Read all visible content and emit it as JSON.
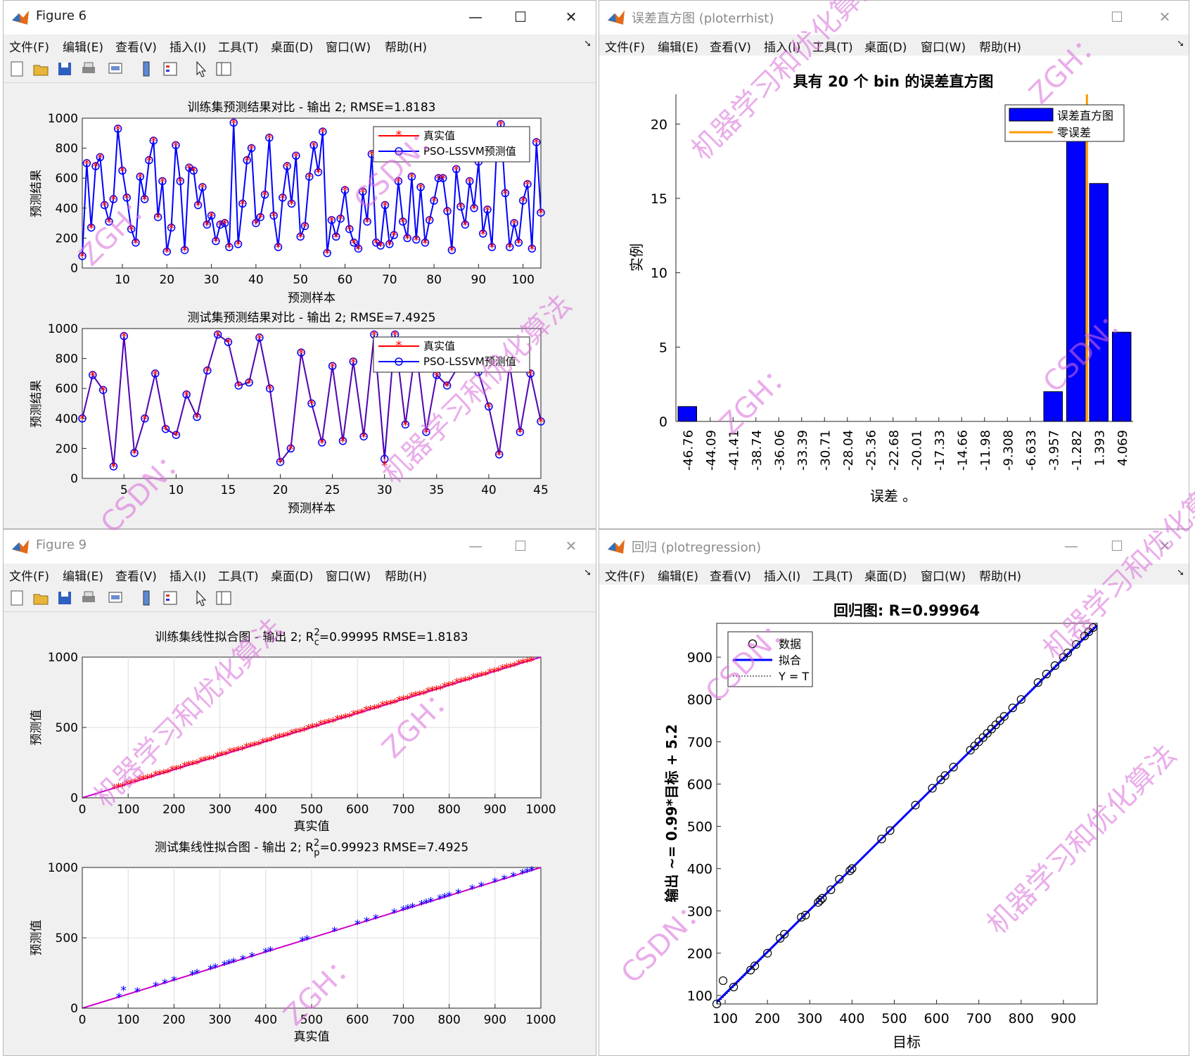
{
  "windows": {
    "fig6": {
      "title": "Figure 6",
      "menus": [
        "文件(F)",
        "编辑(E)",
        "查看(V)",
        "插入(I)",
        "工具(T)",
        "桌面(D)",
        "窗口(W)",
        "帮助(H)"
      ],
      "plot1": {
        "title": "训练集预测结果对比 - 输出 2; RMSE=1.8183",
        "xlabel": "预测样本",
        "ylabel": "预测结果",
        "xticks": [
          "10",
          "20",
          "30",
          "40",
          "50",
          "60",
          "70",
          "80",
          "90",
          "100"
        ],
        "yticks": [
          "0",
          "200",
          "400",
          "600",
          "800",
          "1000"
        ],
        "legend": [
          "真实值",
          "PSO-LSSVM预测值"
        ]
      },
      "plot2": {
        "title": "测试集预测结果对比 - 输出 2; RMSE=7.4925",
        "xlabel": "预测样本",
        "ylabel": "预测结果",
        "xticks": [
          "5",
          "10",
          "15",
          "20",
          "25",
          "30",
          "35",
          "40",
          "45"
        ],
        "yticks": [
          "0",
          "200",
          "400",
          "600",
          "800",
          "1000"
        ],
        "legend": [
          "真实值",
          "PSO-LSSVM预测值"
        ]
      }
    },
    "errhist": {
      "title": "误差直方图 (ploterrhist)",
      "menus": [
        "文件(F)",
        "编辑(E)",
        "查看(V)",
        "插入(I)",
        "工具(T)",
        "桌面(D)",
        "窗口(W)",
        "帮助(H)"
      ],
      "plot_title": "具有 20 个 bin 的误差直方图",
      "xlabel": "误差 。",
      "ylabel": "实例",
      "legend": [
        "误差直方图",
        "零误差"
      ]
    },
    "fig9": {
      "title": "Figure 9",
      "menus": [
        "文件(F)",
        "编辑(E)",
        "查看(V)",
        "插入(I)",
        "工具(T)",
        "桌面(D)",
        "窗口(W)",
        "帮助(H)"
      ],
      "plot1": {
        "title_pre": "训练集线性拟合图 - 输出 2; R",
        "title_sup": "2",
        "title_sub": "c",
        "title_post": "=0.99995  RMSE=1.8183",
        "xlabel": "真实值",
        "ylabel": "预测值",
        "xticks": [
          "0",
          "100",
          "200",
          "300",
          "400",
          "500",
          "600",
          "700",
          "800",
          "900",
          "1000"
        ],
        "yticks": [
          "0",
          "500",
          "1000"
        ]
      },
      "plot2": {
        "title_pre": "测试集线性拟合图 - 输出 2; R",
        "title_sup": "2",
        "title_sub": "p",
        "title_post": "=0.99923  RMSE=7.4925",
        "xlabel": "真实值",
        "ylabel": "预测值",
        "xticks": [
          "0",
          "100",
          "200",
          "300",
          "400",
          "500",
          "600",
          "700",
          "800",
          "900",
          "1000"
        ],
        "yticks": [
          "0",
          "500",
          "1000"
        ]
      }
    },
    "regression": {
      "title": "回归 (plotregression)",
      "menus": [
        "文件(F)",
        "编辑(E)",
        "查看(V)",
        "插入(I)",
        "工具(T)",
        "桌面(D)",
        "窗口(W)",
        "帮助(H)"
      ],
      "plot_title": "回归图: R=0.99964",
      "xlabel": "目标",
      "ylabel": "输出 ~= 0.99*目标 + 5.2",
      "xticks": [
        "100",
        "200",
        "300",
        "400",
        "500",
        "600",
        "700",
        "800",
        "900"
      ],
      "yticks": [
        "100",
        "200",
        "300",
        "400",
        "500",
        "600",
        "700",
        "800",
        "900"
      ],
      "legend": [
        "数据",
        "拟合",
        "Y = T"
      ]
    }
  },
  "watermark": [
    "ZGH：",
    "CSDN：",
    "机器学习和优化算法"
  ],
  "chart_data": [
    {
      "type": "line",
      "title": "训练集预测结果对比 - 输出 2; RMSE=1.8183",
      "xlabel": "预测样本",
      "ylabel": "预测结果",
      "xlim": [
        1,
        104
      ],
      "ylim": [
        0,
        1000
      ],
      "grid": false,
      "legend_position": "top-right",
      "series": [
        {
          "name": "真实值",
          "color": "#ff0000",
          "marker": "*"
        },
        {
          "name": "PSO-LSSVM预测值",
          "color": "#0000ff",
          "marker": "o"
        }
      ],
      "values": [
        80,
        700,
        270,
        680,
        740,
        420,
        310,
        460,
        930,
        650,
        470,
        260,
        170,
        610,
        460,
        720,
        850,
        340,
        580,
        110,
        270,
        820,
        580,
        120,
        670,
        650,
        420,
        540,
        290,
        350,
        180,
        290,
        300,
        140,
        970,
        160,
        430,
        720,
        800,
        300,
        340,
        490,
        870,
        350,
        140,
        470,
        680,
        430,
        750,
        210,
        280,
        610,
        820,
        640,
        910,
        100,
        320,
        210,
        330,
        520,
        260,
        170,
        130,
        510,
        310,
        760,
        170,
        150,
        420,
        160,
        220,
        580,
        310,
        200,
        610,
        190,
        540,
        170,
        320,
        450,
        600,
        600,
        380,
        120,
        660,
        410,
        290,
        580,
        400,
        710,
        230,
        390,
        140,
        750,
        960,
        500,
        140,
        300,
        170,
        450,
        560,
        130,
        840,
        370
      ]
    },
    {
      "type": "line",
      "title": "测试集预测结果对比 - 输出 2; RMSE=7.4925",
      "xlabel": "预测样本",
      "ylabel": "预测结果",
      "xlim": [
        1,
        45
      ],
      "ylim": [
        0,
        1000
      ],
      "grid": false,
      "legend_position": "top-right",
      "series": [
        {
          "name": "真实值",
          "color": "#ff0000",
          "marker": "*",
          "values": [
            400,
            690,
            590,
            80,
            950,
            170,
            400,
            700,
            330,
            290,
            560,
            410,
            720,
            960,
            910,
            620,
            640,
            940,
            600,
            110,
            200,
            840,
            500,
            240,
            750,
            250,
            780,
            280,
            960,
            90,
            960,
            360,
            880,
            310,
            690,
            620,
            740,
            800,
            710,
            480,
            160,
            760,
            310,
            700,
            380
          ]
        },
        {
          "name": "PSO-LSSVM预测值",
          "color": "#0000ff",
          "marker": "o",
          "values": [
            400,
            690,
            590,
            80,
            950,
            170,
            400,
            700,
            330,
            290,
            560,
            410,
            720,
            960,
            910,
            620,
            640,
            940,
            600,
            110,
            200,
            840,
            500,
            240,
            750,
            250,
            780,
            280,
            960,
            130,
            960,
            360,
            880,
            310,
            690,
            620,
            740,
            800,
            710,
            480,
            160,
            760,
            310,
            700,
            380
          ]
        }
      ]
    },
    {
      "type": "bar",
      "title": "具有 20 个 bin 的误差直方图",
      "xlabel": "误差 。",
      "ylabel": "实例",
      "categories": [
        "-46.76",
        "-44.09",
        "-41.41",
        "-38.74",
        "-36.06",
        "-33.39",
        "-30.71",
        "-28.04",
        "-25.36",
        "-22.68",
        "-20.01",
        "-17.33",
        "-14.66",
        "-11.98",
        "-9.308",
        "-6.633",
        "-3.957",
        "-1.282",
        "1.393",
        "4.069"
      ],
      "values": [
        1,
        0,
        0,
        0,
        0,
        0,
        0,
        0,
        0,
        0,
        0,
        0,
        0,
        0,
        0,
        0,
        2,
        21,
        16,
        6
      ],
      "ylim": [
        0,
        22
      ],
      "yticks": [
        0,
        5,
        10,
        15,
        20
      ],
      "zero_error_line": 0,
      "legend_position": "top-right",
      "series": [
        {
          "name": "误差直方图",
          "color": "#0000ff"
        },
        {
          "name": "零误差",
          "color": "#ff9900"
        }
      ]
    },
    {
      "type": "scatter",
      "title": "训练集线性拟合图 - 输出 2; R²c=0.99995  RMSE=1.8183",
      "xlabel": "真实值",
      "ylabel": "预测值",
      "xlim": [
        0,
        1000
      ],
      "ylim": [
        0,
        1000
      ],
      "grid": true,
      "series": [
        {
          "color": "#ff0000",
          "marker": "*",
          "x_range": [
            70,
            980
          ],
          "fit_line": {
            "slope": 1.0,
            "intercept": 0,
            "color": "#cc00cc"
          }
        }
      ]
    },
    {
      "type": "scatter",
      "title": "测试集线性拟合图 - 输出 2; R²p=0.99923  RMSE=7.4925",
      "xlabel": "真实值",
      "ylabel": "预测值",
      "xlim": [
        0,
        1000
      ],
      "ylim": [
        0,
        1000
      ],
      "grid": true,
      "series": [
        {
          "color": "#0000ff",
          "marker": "*",
          "x": [
            80,
            90,
            120,
            160,
            180,
            200,
            240,
            250,
            280,
            290,
            310,
            320,
            330,
            350,
            370,
            400,
            410,
            480,
            490,
            550,
            600,
            620,
            640,
            680,
            700,
            710,
            720,
            740,
            750,
            760,
            780,
            790,
            800,
            820,
            850,
            870,
            900,
            920,
            940,
            960,
            970,
            980
          ],
          "y": [
            80,
            130,
            120,
            160,
            180,
            200,
            240,
            250,
            280,
            290,
            310,
            320,
            330,
            350,
            370,
            400,
            410,
            480,
            490,
            550,
            600,
            620,
            640,
            680,
            700,
            710,
            720,
            740,
            750,
            760,
            780,
            790,
            800,
            820,
            850,
            870,
            900,
            920,
            940,
            960,
            970,
            980
          ],
          "fit_line": {
            "slope": 1.0,
            "intercept": 0,
            "color": "#cc00cc"
          }
        }
      ]
    },
    {
      "type": "scatter",
      "title": "回归图: R=0.99964",
      "xlabel": "目标",
      "ylabel": "输出 ~= 0.99*目标 + 5.2",
      "xlim": [
        80,
        980
      ],
      "ylim": [
        80,
        980
      ],
      "legend_position": "top-left",
      "fit": {
        "slope": 0.99,
        "intercept": 5.2
      },
      "series": [
        {
          "name": "数据",
          "marker": "o",
          "x": [
            80,
            95,
            120,
            160,
            170,
            200,
            230,
            240,
            280,
            290,
            320,
            325,
            330,
            350,
            370,
            395,
            400,
            470,
            490,
            550,
            590,
            610,
            620,
            640,
            680,
            690,
            700,
            710,
            720,
            730,
            740,
            750,
            760,
            780,
            800,
            840,
            860,
            880,
            900,
            910,
            930,
            950,
            960,
            970
          ],
          "y": [
            80,
            135,
            120,
            160,
            170,
            200,
            235,
            245,
            285,
            290,
            320,
            325,
            330,
            350,
            375,
            395,
            400,
            470,
            490,
            550,
            590,
            610,
            620,
            640,
            680,
            690,
            700,
            710,
            720,
            730,
            740,
            750,
            760,
            780,
            800,
            840,
            860,
            880,
            900,
            910,
            930,
            950,
            960,
            970
          ]
        }
      ]
    }
  ]
}
